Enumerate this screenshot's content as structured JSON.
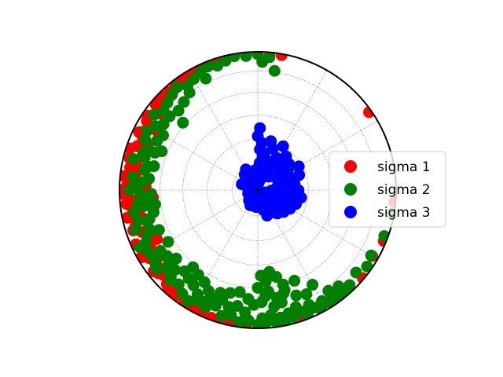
{
  "chart_data": {
    "type": "scatter",
    "projection": "equal-area stereonet (lower hemisphere)",
    "grid": true,
    "legend_position": "right",
    "center_marker": "+",
    "units": "trend_deg / plunge_deg",
    "series": [
      {
        "name": "sigma 1",
        "color": "#ff0000",
        "points": [
          [
            270,
            2
          ],
          [
            268,
            4
          ],
          [
            272,
            6
          ],
          [
            266,
            8
          ],
          [
            274,
            10
          ],
          [
            264,
            5
          ],
          [
            276,
            3
          ],
          [
            262,
            9
          ],
          [
            278,
            12
          ],
          [
            260,
            14
          ],
          [
            280,
            7
          ],
          [
            258,
            4
          ],
          [
            282,
            11
          ],
          [
            256,
            16
          ],
          [
            284,
            5
          ],
          [
            254,
            9
          ],
          [
            286,
            14
          ],
          [
            252,
            6
          ],
          [
            288,
            3
          ],
          [
            250,
            12
          ],
          [
            290,
            8
          ],
          [
            248,
            18
          ],
          [
            292,
            15
          ],
          [
            246,
            4
          ],
          [
            294,
            10
          ],
          [
            244,
            7
          ],
          [
            296,
            5
          ],
          [
            242,
            13
          ],
          [
            298,
            9
          ],
          [
            240,
            3
          ],
          [
            300,
            12
          ],
          [
            238,
            8
          ],
          [
            302,
            6
          ],
          [
            236,
            15
          ],
          [
            304,
            4
          ],
          [
            234,
            10
          ],
          [
            306,
            8
          ],
          [
            232,
            5
          ],
          [
            308,
            11
          ],
          [
            230,
            7
          ],
          [
            310,
            4
          ],
          [
            228,
            9
          ],
          [
            312,
            6
          ],
          [
            226,
            12
          ],
          [
            314,
            3
          ],
          [
            224,
            6
          ],
          [
            316,
            8
          ],
          [
            222,
            4
          ],
          [
            318,
            5
          ],
          [
            220,
            9
          ],
          [
            320,
            6
          ],
          [
            218,
            3
          ],
          [
            322,
            4
          ],
          [
            216,
            7
          ],
          [
            324,
            2
          ],
          [
            214,
            5
          ],
          [
            326,
            5
          ],
          [
            212,
            3
          ],
          [
            328,
            3
          ],
          [
            210,
            6
          ],
          [
            330,
            4
          ],
          [
            208,
            4
          ],
          [
            332,
            2
          ],
          [
            206,
            3
          ],
          [
            334,
            3
          ],
          [
            336,
            2
          ],
          [
            204,
            2
          ],
          [
            338,
            4
          ],
          [
            340,
            3
          ],
          [
            342,
            2
          ],
          [
            345,
            2
          ],
          [
            350,
            1
          ],
          [
            355,
            2
          ],
          [
            5,
            3
          ],
          [
            10,
            1
          ],
          [
            200,
            2
          ],
          [
            196,
            3
          ],
          [
            192,
            1
          ],
          [
            185,
            1
          ],
          [
            178,
            2
          ],
          [
            170,
            1
          ],
          [
            160,
            2
          ],
          [
            55,
            2
          ],
          [
            130,
            1
          ],
          [
            95,
            1
          ],
          [
            112,
            2
          ],
          [
            120,
            5
          ],
          [
            262,
            22
          ],
          [
            272,
            20
          ],
          [
            266,
            25
          ],
          [
            300,
            18
          ],
          [
            244,
            20
          ],
          [
            280,
            16
          ]
        ]
      },
      {
        "name": "sigma 2",
        "color": "#008000",
        "points": [
          [
            270,
            8
          ],
          [
            272,
            12
          ],
          [
            268,
            16
          ],
          [
            276,
            10
          ],
          [
            264,
            14
          ],
          [
            280,
            18
          ],
          [
            260,
            10
          ],
          [
            284,
            8
          ],
          [
            256,
            12
          ],
          [
            288,
            14
          ],
          [
            290,
            18
          ],
          [
            252,
            8
          ],
          [
            294,
            12
          ],
          [
            248,
            15
          ],
          [
            298,
            10
          ],
          [
            244,
            6
          ],
          [
            302,
            14
          ],
          [
            240,
            10
          ],
          [
            306,
            8
          ],
          [
            236,
            12
          ],
          [
            310,
            12
          ],
          [
            232,
            8
          ],
          [
            314,
            10
          ],
          [
            228,
            14
          ],
          [
            318,
            8
          ],
          [
            224,
            10
          ],
          [
            322,
            6
          ],
          [
            220,
            12
          ],
          [
            326,
            10
          ],
          [
            216,
            8
          ],
          [
            330,
            8
          ],
          [
            212,
            6
          ],
          [
            334,
            6
          ],
          [
            208,
            10
          ],
          [
            338,
            4
          ],
          [
            204,
            8
          ],
          [
            342,
            6
          ],
          [
            200,
            12
          ],
          [
            346,
            4
          ],
          [
            196,
            6
          ],
          [
            350,
            2
          ],
          [
            192,
            8
          ],
          [
            355,
            3
          ],
          [
            188,
            4
          ],
          [
            0,
            2
          ],
          [
            184,
            6
          ],
          [
            5,
            4
          ],
          [
            180,
            3
          ],
          [
            178,
            8
          ],
          [
            176,
            5
          ],
          [
            174,
            10
          ],
          [
            172,
            4
          ],
          [
            170,
            7
          ],
          [
            168,
            3
          ],
          [
            166,
            9
          ],
          [
            164,
            5
          ],
          [
            162,
            12
          ],
          [
            160,
            7
          ],
          [
            158,
            4
          ],
          [
            156,
            10
          ],
          [
            154,
            6
          ],
          [
            152,
            3
          ],
          [
            150,
            8
          ],
          [
            148,
            5
          ],
          [
            146,
            2
          ],
          [
            144,
            6
          ],
          [
            142,
            3
          ],
          [
            140,
            4
          ],
          [
            138,
            2
          ],
          [
            136,
            5
          ],
          [
            186,
            12
          ],
          [
            182,
            18
          ],
          [
            178,
            20
          ],
          [
            176,
            24
          ],
          [
            174,
            27
          ],
          [
            172,
            16
          ],
          [
            170,
            22
          ],
          [
            168,
            18
          ],
          [
            166,
            24
          ],
          [
            190,
            16
          ],
          [
            194,
            14
          ],
          [
            198,
            18
          ],
          [
            202,
            16
          ],
          [
            206,
            20
          ],
          [
            210,
            14
          ],
          [
            214,
            18
          ],
          [
            218,
            20
          ],
          [
            222,
            22
          ],
          [
            226,
            18
          ],
          [
            230,
            16
          ],
          [
            234,
            20
          ],
          [
            238,
            18
          ],
          [
            248,
            24
          ],
          [
            255,
            20
          ],
          [
            262,
            26
          ],
          [
            268,
            24
          ],
          [
            276,
            22
          ],
          [
            283,
            24
          ],
          [
            290,
            22
          ],
          [
            296,
            20
          ],
          [
            305,
            18
          ],
          [
            315,
            20
          ],
          [
            320,
            18
          ],
          [
            325,
            15
          ],
          [
            335,
            12
          ],
          [
            8,
            14
          ],
          [
            2,
            8
          ],
          [
            150,
            22
          ],
          [
            155,
            18
          ],
          [
            160,
            20
          ],
          [
            165,
            26
          ],
          [
            180,
            30
          ],
          [
            175,
            34
          ],
          [
            172,
            40
          ],
          [
            178,
            38
          ],
          [
            168,
            36
          ],
          [
            165,
            30
          ],
          [
            158,
            30
          ],
          [
            145,
            12
          ],
          [
            140,
            10
          ],
          [
            130,
            8
          ],
          [
            120,
            6
          ],
          [
            125,
            4
          ],
          [
            110,
            3
          ],
          [
            100,
            2
          ],
          [
            200,
            22
          ],
          [
            210,
            24
          ],
          [
            220,
            28
          ],
          [
            230,
            24
          ],
          [
            240,
            26
          ],
          [
            245,
            12
          ],
          [
            254,
            18
          ],
          [
            266,
            20
          ],
          [
            274,
            18
          ],
          [
            282,
            20
          ],
          [
            286,
            16
          ],
          [
            292,
            26
          ],
          [
            300,
            22
          ],
          [
            310,
            18
          ],
          [
            312,
            28
          ],
          [
            185,
            22
          ],
          [
            190,
            26
          ],
          [
            195,
            24
          ],
          [
            205,
            12
          ],
          [
            215,
            26
          ],
          [
            225,
            12
          ],
          [
            235,
            10
          ],
          [
            250,
            18
          ],
          [
            258,
            24
          ],
          [
            262,
            18
          ]
        ]
      },
      {
        "name": "sigma 3",
        "color": "#0000ff",
        "points": [
          [
            0,
            58
          ],
          [
            2,
            53
          ],
          [
            5,
            62
          ],
          [
            3,
            66
          ],
          [
            8,
            70
          ],
          [
            12,
            72
          ],
          [
            18,
            78
          ],
          [
            25,
            75
          ],
          [
            35,
            70
          ],
          [
            45,
            72
          ],
          [
            55,
            68
          ],
          [
            65,
            70
          ],
          [
            75,
            72
          ],
          [
            85,
            74
          ],
          [
            95,
            76
          ],
          [
            105,
            72
          ],
          [
            115,
            74
          ],
          [
            125,
            76
          ],
          [
            135,
            78
          ],
          [
            145,
            80
          ],
          [
            150,
            75
          ],
          [
            140,
            72
          ],
          [
            130,
            70
          ],
          [
            120,
            68
          ],
          [
            110,
            66
          ],
          [
            100,
            68
          ],
          [
            90,
            70
          ],
          [
            80,
            68
          ],
          [
            70,
            64
          ],
          [
            60,
            62
          ],
          [
            50,
            66
          ],
          [
            40,
            64
          ],
          [
            30,
            60
          ],
          [
            20,
            64
          ],
          [
            15,
            60
          ],
          [
            10,
            68
          ],
          [
            4,
            74
          ],
          [
            355,
            78
          ],
          [
            350,
            82
          ],
          [
            340,
            80
          ],
          [
            330,
            76
          ],
          [
            320,
            78
          ],
          [
            310,
            82
          ],
          [
            300,
            85
          ],
          [
            290,
            80
          ],
          [
            280,
            84
          ],
          [
            270,
            88
          ],
          [
            260,
            86
          ],
          [
            250,
            84
          ],
          [
            240,
            88
          ],
          [
            230,
            86
          ],
          [
            220,
            82
          ],
          [
            210,
            84
          ],
          [
            200,
            86
          ],
          [
            190,
            88
          ],
          [
            180,
            84
          ],
          [
            175,
            80
          ],
          [
            165,
            78
          ],
          [
            160,
            74
          ],
          [
            155,
            80
          ],
          [
            145,
            74
          ],
          [
            138,
            82
          ],
          [
            128,
            80
          ],
          [
            118,
            78
          ],
          [
            108,
            80
          ],
          [
            98,
            78
          ],
          [
            88,
            80
          ],
          [
            78,
            78
          ],
          [
            68,
            76
          ],
          [
            58,
            76
          ],
          [
            48,
            78
          ],
          [
            38,
            80
          ],
          [
            28,
            80
          ],
          [
            20,
            82
          ],
          [
            12,
            84
          ],
          [
            5,
            86
          ],
          [
            92,
            82
          ],
          [
            102,
            84
          ],
          [
            112,
            86
          ],
          [
            122,
            84
          ],
          [
            132,
            86
          ],
          [
            142,
            84
          ],
          [
            152,
            86
          ],
          [
            162,
            84
          ],
          [
            170,
            86
          ],
          [
            60,
            72
          ],
          [
            70,
            74
          ],
          [
            80,
            76
          ],
          [
            90,
            66
          ],
          [
            100,
            64
          ],
          [
            42,
            68
          ],
          [
            52,
            74
          ],
          [
            22,
            72
          ],
          [
            30,
            68
          ],
          [
            14,
            76
          ],
          [
            8,
            80
          ],
          [
            0,
            82
          ],
          [
            186,
            80
          ],
          [
            196,
            82
          ],
          [
            206,
            80
          ]
        ]
      }
    ]
  }
}
